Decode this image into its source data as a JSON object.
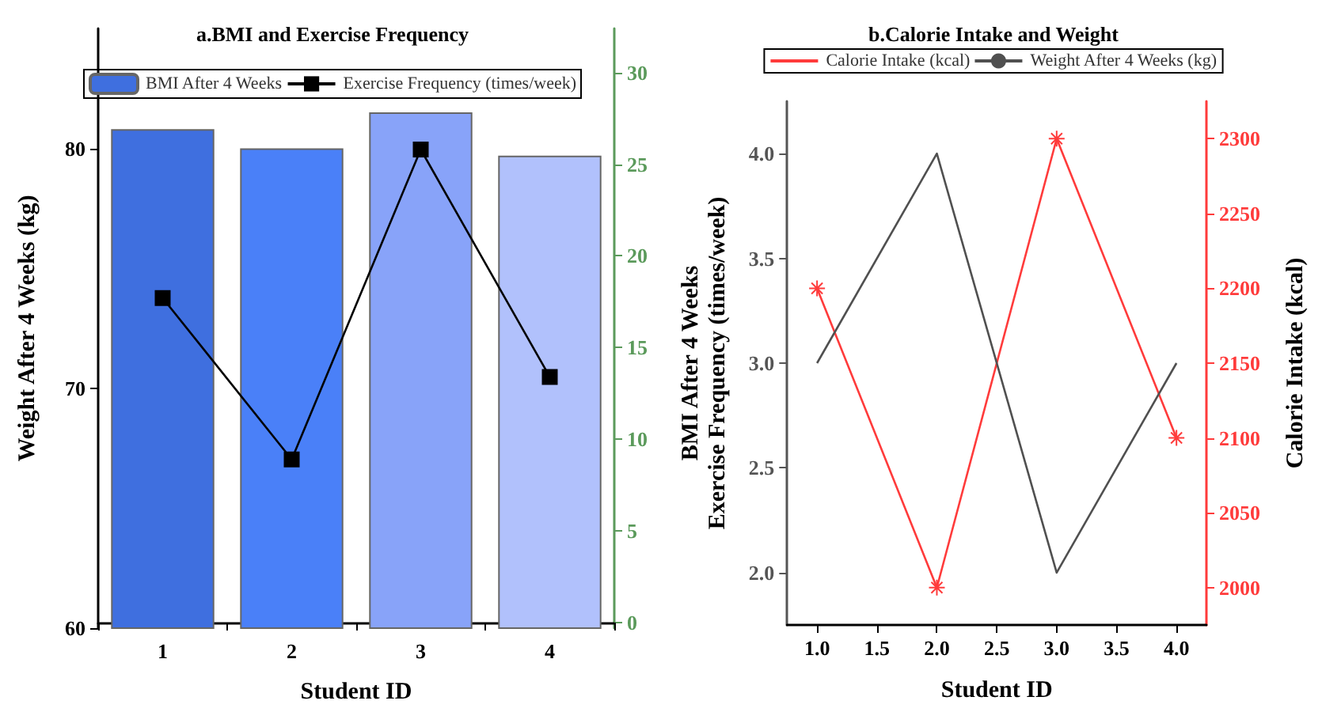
{
  "chart_data": [
    {
      "type": "bar",
      "title": "a.BMI and Exercise Frequency",
      "xlabel": "Student ID",
      "ylabel": "Weight After 4 Weeks (kg)",
      "categories": [
        "1",
        "2",
        "3",
        "4"
      ],
      "series": [
        {
          "name": "BMI After 4 Weeks",
          "colors": [
            "#3f6fdf",
            "#4a80f8",
            "#88a3f9",
            "#b1c1fc"
          ],
          "values": [
            80.8,
            80.0,
            81.5,
            79.7
          ]
        },
        {
          "name": "Exercise Frequency (times/week)",
          "type": "line",
          "axis": "y2",
          "color": "#000000",
          "marker": "square",
          "values": [
            17.7,
            8.9,
            25.8,
            13.4
          ]
        }
      ],
      "ylim": [
        60,
        85
      ],
      "yticks": [
        60,
        70,
        80
      ],
      "y2lim": [
        -0.3,
        32.4
      ],
      "y2ticks": [
        0,
        5,
        10,
        15,
        20,
        25,
        30
      ],
      "legend": "top",
      "grid": false
    },
    {
      "type": "line",
      "title": "b.Calorie Intake and Weight",
      "xlabel": "Student ID",
      "ylabel": "BMI After 4 Weeks\nExercise Frequency (times/week)",
      "y2label": "Calorie Intake (kcal)",
      "x": [
        1,
        2,
        3,
        4
      ],
      "series": [
        {
          "name": "Calorie Intake (kcal)",
          "axis": "y2",
          "color": "#ff3b3b",
          "marker": "cross",
          "values": [
            2200,
            2000,
            2300,
            2100
          ]
        },
        {
          "name": "Weight After 4 Weeks (kg)",
          "color": "#505050",
          "marker": "none",
          "values": [
            3,
            4,
            2,
            3
          ]
        }
      ],
      "xlim": [
        0.75,
        4.25
      ],
      "xticks": [
        {
          "value": 1,
          "label": "1.0"
        },
        1.5,
        {
          "value": 2,
          "label": "2.0"
        },
        2.5,
        {
          "value": 3,
          "label": "3.0"
        },
        3.5,
        {
          "value": 4,
          "label": "4.0"
        }
      ],
      "ylim": [
        1.75,
        4.25
      ],
      "yticks": [
        {
          "value": 2,
          "label": "2.0"
        },
        2.5,
        {
          "value": 3,
          "label": "3.0"
        },
        3.5,
        {
          "value": 4,
          "label": "4.0"
        }
      ],
      "y2lim": [
        1975,
        2325
      ],
      "y2ticks": [
        2000,
        2050,
        2100,
        2150,
        2200,
        2250,
        2300
      ],
      "legend": "top",
      "grid": false
    }
  ]
}
